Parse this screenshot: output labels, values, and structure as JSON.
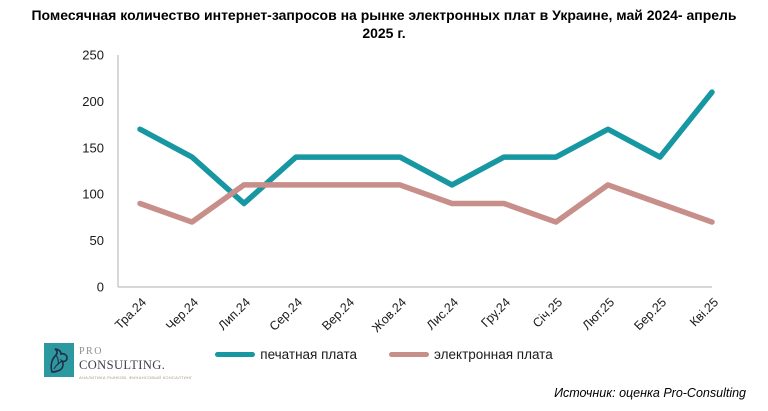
{
  "chart_data": {
    "type": "line",
    "title": "Помесячная количество интернет-запросов на рынке электронных плат в Украине, май 2024- апрель 2025 г.",
    "categories": [
      "Тра.24",
      "Чер.24",
      "Лип.24",
      "Сер.24",
      "Вер.24",
      "Жов.24",
      "Лис.24",
      "Гру.24",
      "Січ.25",
      "Лют.25",
      "Бер.25",
      "Кві.25"
    ],
    "series": [
      {
        "name": "печатная плата",
        "color": "#1797A1",
        "values": [
          170,
          140,
          90,
          140,
          140,
          140,
          110,
          140,
          140,
          170,
          140,
          210
        ]
      },
      {
        "name": "электронная плата",
        "color": "#C78E8A",
        "values": [
          90,
          70,
          110,
          110,
          110,
          110,
          90,
          90,
          70,
          110,
          90,
          70
        ]
      }
    ],
    "xlabel": "",
    "ylabel": "",
    "ylim": [
      0,
      250
    ],
    "yticks": [
      0,
      50,
      100,
      150,
      200,
      250
    ],
    "grid": false,
    "legend_position": "bottom",
    "axis_color": "#BFBFBF",
    "tick_label_color": "#1a1a1a"
  },
  "logo": {
    "name_top": "PRO",
    "name_main": "CONSULTING.",
    "tagline": "АНАЛИТИКА РЫНКОВ. ФИНАНСОВЫЙ КОНСАЛТИНГ"
  },
  "footer": {
    "source": "Источник: оценка Pro-Consulting"
  }
}
